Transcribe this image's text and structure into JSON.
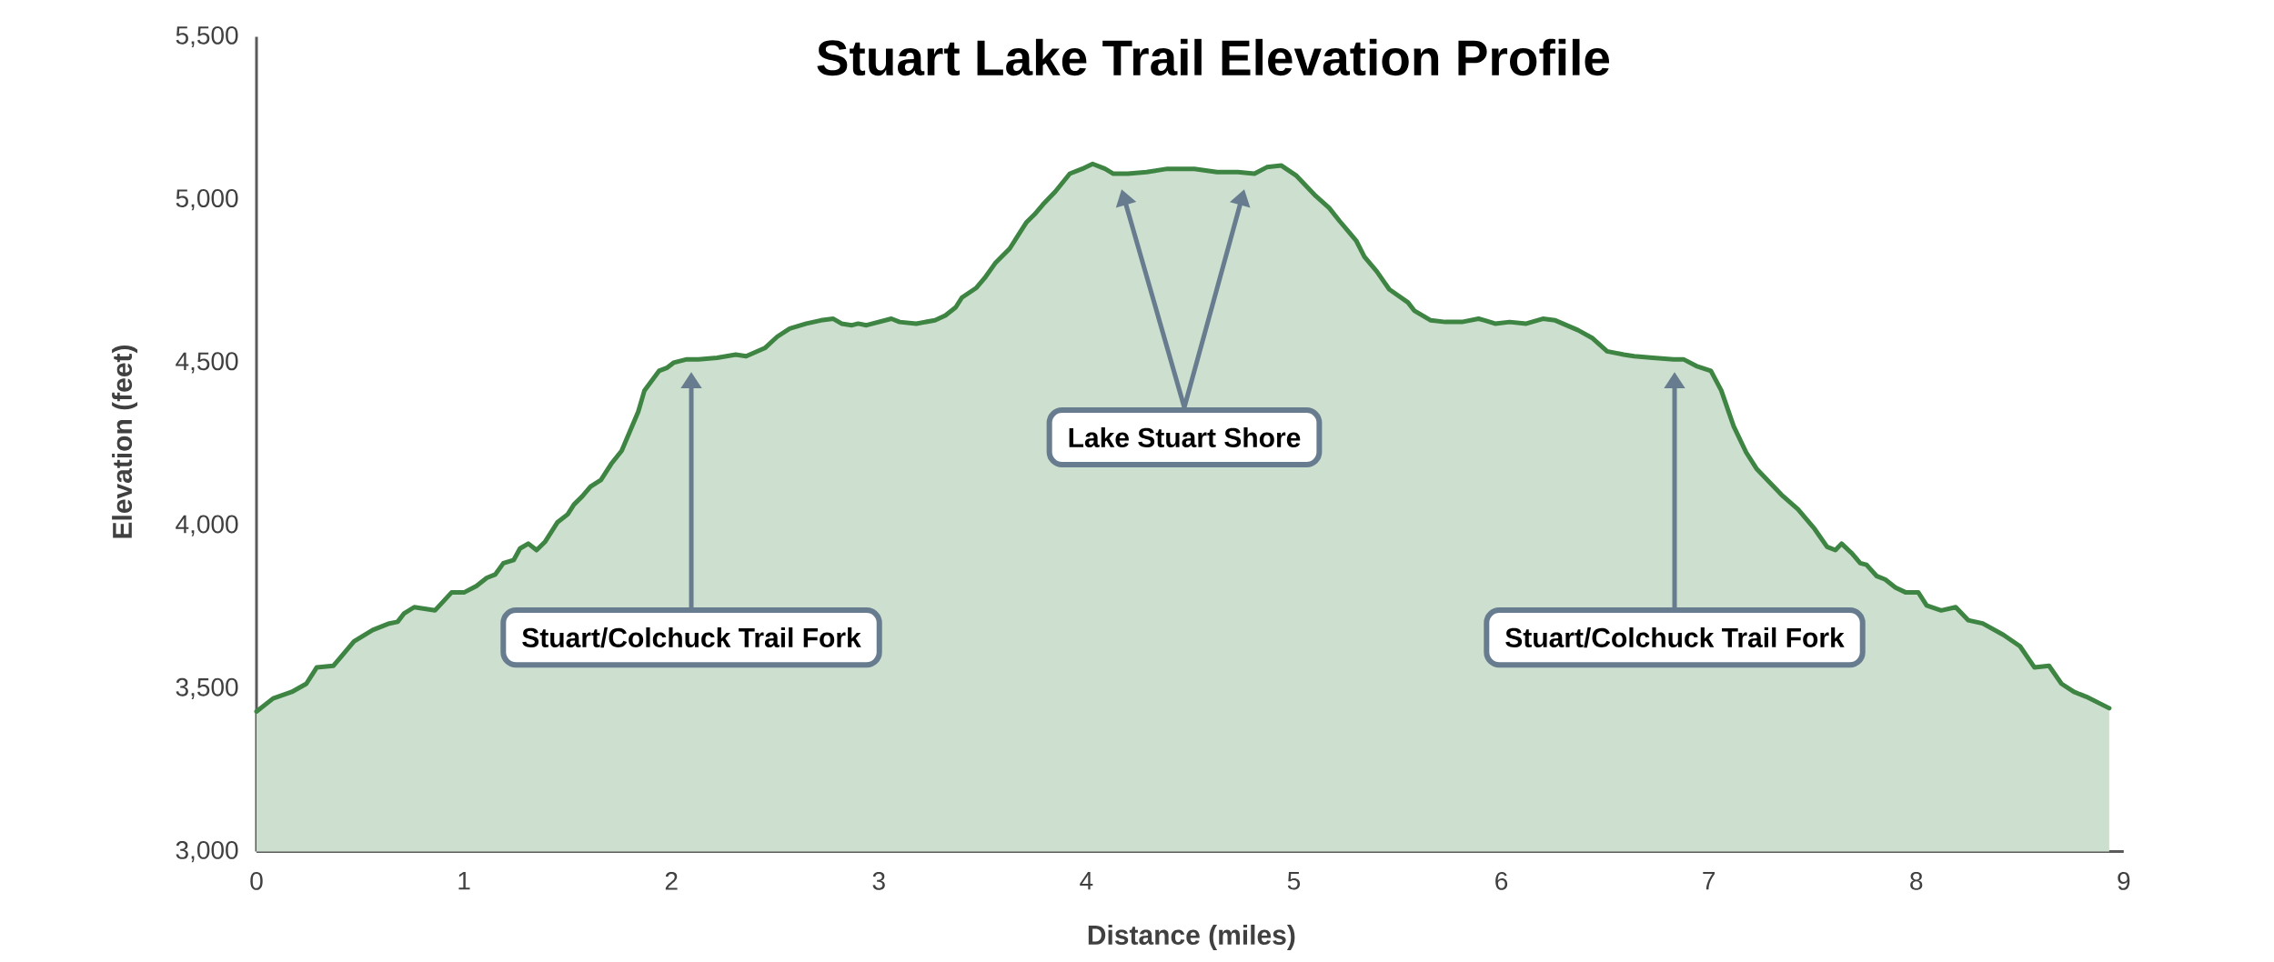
{
  "chart_data": {
    "type": "area",
    "title": "Stuart Lake Trail Elevation Profile",
    "xlabel": "Distance (miles)",
    "ylabel": "Elevation (feet)",
    "color": "#3e8443",
    "x": [
      0,
      0.08,
      0.17,
      0.24,
      0.29,
      0.37,
      0.41,
      0.47,
      0.56,
      0.64,
      0.68,
      0.71,
      0.76,
      0.86,
      0.94,
      1.0,
      1.06,
      1.11,
      1.15,
      1.19,
      1.24,
      1.27,
      1.31,
      1.35,
      1.39,
      1.45,
      1.5,
      1.53,
      1.57,
      1.61,
      1.66,
      1.71,
      1.76,
      1.8,
      1.84,
      1.87,
      1.94,
      1.98,
      2.01,
      2.07,
      2.13,
      2.22,
      2.31,
      2.36,
      2.45,
      2.51,
      2.57,
      2.65,
      2.72,
      2.78,
      2.82,
      2.87,
      2.9,
      2.94,
      3.0,
      3.06,
      3.1,
      3.18,
      3.27,
      3.32,
      3.37,
      3.4,
      3.47,
      3.51,
      3.56,
      3.63,
      3.67,
      3.71,
      3.75,
      3.79,
      3.85,
      3.92,
      3.98,
      4.03,
      4.09,
      4.13,
      4.2,
      4.29,
      4.39,
      4.45,
      4.52,
      4.63,
      4.73,
      4.81,
      4.87,
      4.94,
      5.01,
      5.1,
      5.17,
      5.22,
      5.3,
      5.34,
      5.4,
      5.46,
      5.55,
      5.58,
      5.66,
      5.73,
      5.81,
      5.89,
      5.92,
      5.97,
      6.04,
      6.12,
      6.2,
      6.26,
      6.37,
      6.44,
      6.51,
      6.59,
      6.64,
      6.73,
      6.83,
      6.88,
      6.94,
      7.01,
      7.06,
      7.12,
      7.18,
      7.23,
      7.29,
      7.35,
      7.43,
      7.51,
      7.57,
      7.61,
      7.64,
      7.69,
      7.73,
      7.76,
      7.81,
      7.85,
      7.9,
      7.95,
      8.01,
      8.05,
      8.12,
      8.19,
      8.25,
      8.32,
      8.42,
      8.5,
      8.57,
      8.64,
      8.7,
      8.76,
      8.82,
      8.93
    ],
    "values": [
      3430,
      3470,
      3490,
      3515,
      3565,
      3570,
      3600,
      3645,
      3680,
      3700,
      3705,
      3730,
      3750,
      3740,
      3795,
      3795,
      3815,
      3840,
      3850,
      3885,
      3895,
      3930,
      3945,
      3925,
      3950,
      4010,
      4035,
      4065,
      4090,
      4120,
      4140,
      4190,
      4230,
      4290,
      4350,
      4415,
      4475,
      4485,
      4500,
      4510,
      4510,
      4515,
      4525,
      4520,
      4545,
      4580,
      4605,
      4620,
      4630,
      4635,
      4620,
      4615,
      4620,
      4615,
      4625,
      4635,
      4625,
      4620,
      4630,
      4645,
      4670,
      4700,
      4730,
      4760,
      4805,
      4850,
      4890,
      4930,
      4955,
      4985,
      5025,
      5080,
      5095,
      5110,
      5095,
      5080,
      5080,
      5085,
      5095,
      5095,
      5095,
      5085,
      5085,
      5080,
      5100,
      5105,
      5075,
      5015,
      4975,
      4935,
      4875,
      4825,
      4780,
      4725,
      4685,
      4660,
      4630,
      4625,
      4625,
      4635,
      4630,
      4620,
      4625,
      4620,
      4635,
      4630,
      4600,
      4575,
      4535,
      4525,
      4520,
      4515,
      4510,
      4510,
      4490,
      4475,
      4415,
      4305,
      4225,
      4175,
      4135,
      4095,
      4050,
      3990,
      3935,
      3925,
      3945,
      3915,
      3885,
      3880,
      3845,
      3835,
      3810,
      3795,
      3795,
      3755,
      3740,
      3750,
      3710,
      3700,
      3665,
      3630,
      3565,
      3570,
      3515,
      3490,
      3475,
      3440
    ],
    "xlim": [
      0,
      9
    ],
    "ylim": [
      3000,
      5500
    ],
    "xticks": [
      0,
      1,
      2,
      3,
      4,
      5,
      6,
      7,
      8,
      9
    ],
    "yticks": [
      {
        "value": 3000,
        "label": "3,000"
      },
      {
        "value": 3500,
        "label": "3,500"
      },
      {
        "value": 4000,
        "label": "4,000"
      },
      {
        "value": 4500,
        "label": "4,500"
      },
      {
        "value": 5000,
        "label": "5,000"
      },
      {
        "value": 5500,
        "label": "5,500"
      }
    ],
    "annotations": [
      "Stuart/Colchuck Trail Fork",
      "Lake Stuart Shore",
      "Stuart/Colchuck Trail Fork"
    ]
  }
}
